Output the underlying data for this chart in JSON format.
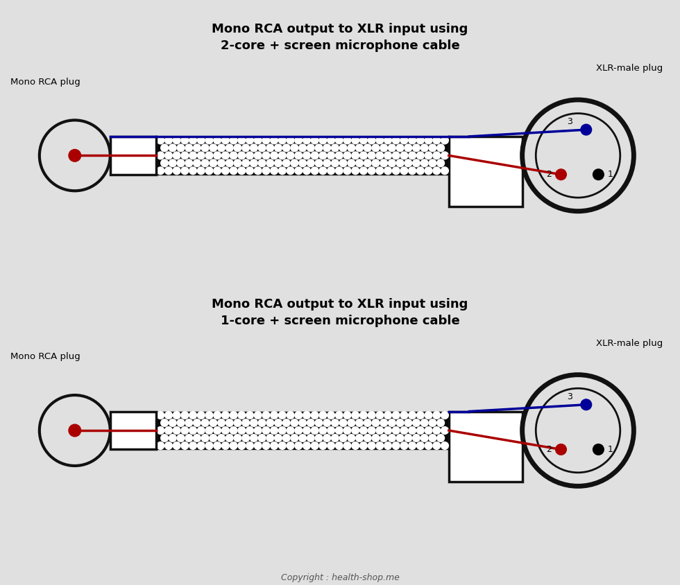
{
  "bg_color": "#e0e0e0",
  "title1": "Mono RCA output to XLR input using\n2-core + screen microphone cable",
  "title2": "Mono RCA output to XLR input using\n1-core + screen microphone cable",
  "label_rca": "Mono RCA plug",
  "label_xlr": "XLR-male plug",
  "copyright": "Copyright : health-shop.me",
  "wire_red": "#aa0000",
  "wire_blue": "#000099",
  "connector_black": "#111111",
  "cable_dot_color": "#ffffff",
  "pin1_label": "1",
  "pin2_label": "2",
  "pin3_label": "3"
}
